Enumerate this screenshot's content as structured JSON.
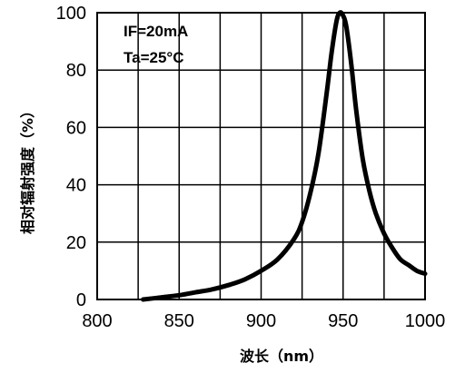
{
  "chart_data": {
    "type": "line",
    "title": "",
    "xlabel": "波长（nm）",
    "ylabel": "相对辐射强度（%）",
    "xlim": [
      800,
      1000
    ],
    "ylim": [
      0,
      100
    ],
    "x_ticks": [
      800,
      850,
      900,
      950,
      1000
    ],
    "y_ticks": [
      0,
      20,
      40,
      60,
      80,
      100
    ],
    "x_tick_labels": [
      "800",
      "850",
      "900",
      "950",
      "1000"
    ],
    "y_tick_labels": [
      "0",
      "20",
      "40",
      "60",
      "80",
      "100"
    ],
    "grid": true,
    "annotations": [
      "IF=20mA",
      "Ta=25°C"
    ],
    "series": [
      {
        "color": "#000000",
        "x": [
          828,
          840,
          850,
          860,
          870,
          880,
          890,
          900,
          910,
          920,
          925,
          930,
          935,
          940,
          943,
          946,
          948,
          950,
          952,
          955,
          958,
          962,
          966,
          970,
          975,
          980,
          985,
          990,
          995,
          1000
        ],
        "y": [
          0,
          0.8,
          1.5,
          2.5,
          3.5,
          5,
          7,
          10,
          14,
          21,
          27,
          37,
          51,
          72,
          86,
          97,
          100,
          99,
          95,
          82,
          66,
          49,
          38,
          30,
          23,
          18,
          14,
          12,
          10,
          9
        ]
      }
    ]
  }
}
